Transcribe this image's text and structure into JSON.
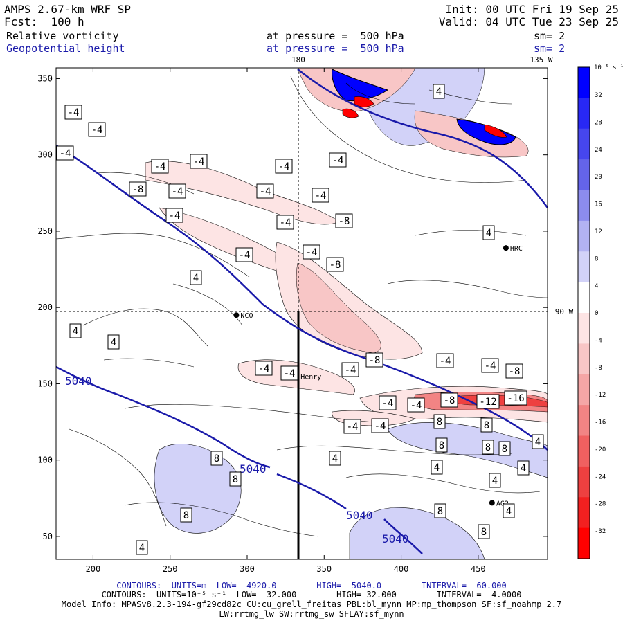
{
  "header": {
    "model": "AMPS 2.67-km WRF SP",
    "forecast": "Fcst:  100 h",
    "init": "Init: 00 UTC Fri 19 Sep 25",
    "valid": "Valid: 04 UTC Tue 23 Sep 25",
    "field1": "Relative vorticity",
    "field2": "Geopotential height",
    "pressure1": "at pressure =  500 hPa",
    "pressure2": "at pressure =  500 hPa",
    "sm1": "sm= 2",
    "sm2": "sm= 2"
  },
  "map": {
    "lon_labels": [
      "180",
      "135 W",
      "90 W"
    ],
    "x_ticks": [
      "200",
      "250",
      "300",
      "350",
      "400",
      "450"
    ],
    "y_ticks": [
      "350",
      "300",
      "250",
      "200",
      "150",
      "100",
      "50"
    ],
    "x_tick_values": [
      200,
      250,
      300,
      350,
      400,
      450
    ],
    "y_tick_values": [
      350,
      300,
      250,
      200,
      150,
      100,
      50
    ],
    "x_range": [
      176,
      495
    ],
    "y_range": [
      35,
      357
    ],
    "stations": [
      {
        "name": "NCO",
        "x": 293,
        "y": 195
      },
      {
        "name": "HRC",
        "x": 468,
        "y": 239
      },
      {
        "name": "Henry",
        "x": 332,
        "y": 155
      },
      {
        "name": "AG2",
        "x": 459,
        "y": 72
      }
    ],
    "height_labels": [
      "5040",
      "5040",
      "5040",
      "5040"
    ],
    "vorticity_labels": [
      "-4",
      "-4",
      "-4",
      "-4",
      "-4",
      "-4",
      "-4",
      "-8",
      "-4",
      "-4",
      "-4",
      "-4",
      "-4",
      "-8",
      "-4",
      "-4",
      "-8",
      "-4",
      "-4",
      "-4",
      "-8",
      "-4",
      "-4",
      "-8",
      "-4",
      "-4",
      "-8",
      "-12",
      "-16",
      "-4",
      "-4",
      "4",
      "4",
      "4",
      "4",
      "4",
      "4",
      "8",
      "8",
      "8",
      "8",
      "8",
      "8",
      "8",
      "8",
      "8",
      "8",
      "4",
      "4",
      "4",
      "4",
      "4",
      "4"
    ]
  },
  "colorbar": {
    "units": "10⁻⁵ s⁻¹",
    "labels": [
      "32",
      "28",
      "24",
      "20",
      "16",
      "12",
      "8",
      "4",
      "0",
      "-4",
      "-8",
      "-12",
      "-16",
      "-20",
      "-24",
      "-28",
      "-32"
    ],
    "colors": [
      "#0000ff",
      "#2828f5",
      "#4646ee",
      "#6464ea",
      "#8c8cee",
      "#b2b2f2",
      "#d2d2f8",
      "#ffffff",
      "#ffffff",
      "#fde4e4",
      "#f8c6c6",
      "#f5a6a6",
      "#f28484",
      "#f06060",
      "#ee4040",
      "#f22020",
      "#ff0000"
    ]
  },
  "footer": {
    "line1": "CONTOURS:  UNITS=m  LOW=  4920.0        HIGH=  5040.0        INTERVAL=  60.000",
    "line2": "CONTOURS:  UNITS=10⁻⁵ s⁻¹  LOW= -32.000        HIGH= 32.000        INTERVAL=  4.0000",
    "line3": "Model Info: MPASv8.2.3-194-gf29cd82c CU:cu_grell_freitas PBL:bl_mynn MP:mp_thompson SF:sf_noahmp 2.7",
    "line4": "LW:rrtmg_lw SW:rrtmg_sw SFLAY:sf_mynn"
  }
}
